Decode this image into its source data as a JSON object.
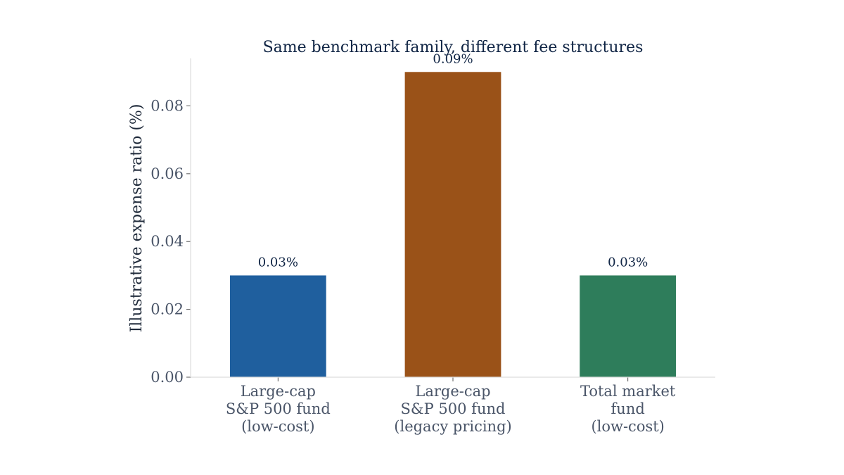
{
  "chart_data": {
    "type": "bar",
    "title": "Same benchmark family, different fee structures",
    "xlabel": "",
    "ylabel": "Illustrative expense ratio (%)",
    "categories": [
      [
        "Large-cap",
        "S&P 500 fund",
        "(low-cost)"
      ],
      [
        "Large-cap",
        "S&P 500 fund",
        "(legacy pricing)"
      ],
      [
        "Total market",
        "fund",
        "(low-cost)"
      ]
    ],
    "values": [
      0.03,
      0.09,
      0.03
    ],
    "data_labels": [
      "0.03%",
      "0.09%",
      "0.03%"
    ],
    "colors": [
      "#1f5f9e",
      "#9a5218",
      "#2e7d5b"
    ],
    "ylim": [
      0,
      0.094
    ],
    "yticks": [
      0.0,
      0.02,
      0.04,
      0.06,
      0.08
    ],
    "ytick_labels": [
      "0.00",
      "0.02",
      "0.04",
      "0.06",
      "0.08"
    ],
    "grid": false,
    "legend": "none"
  }
}
